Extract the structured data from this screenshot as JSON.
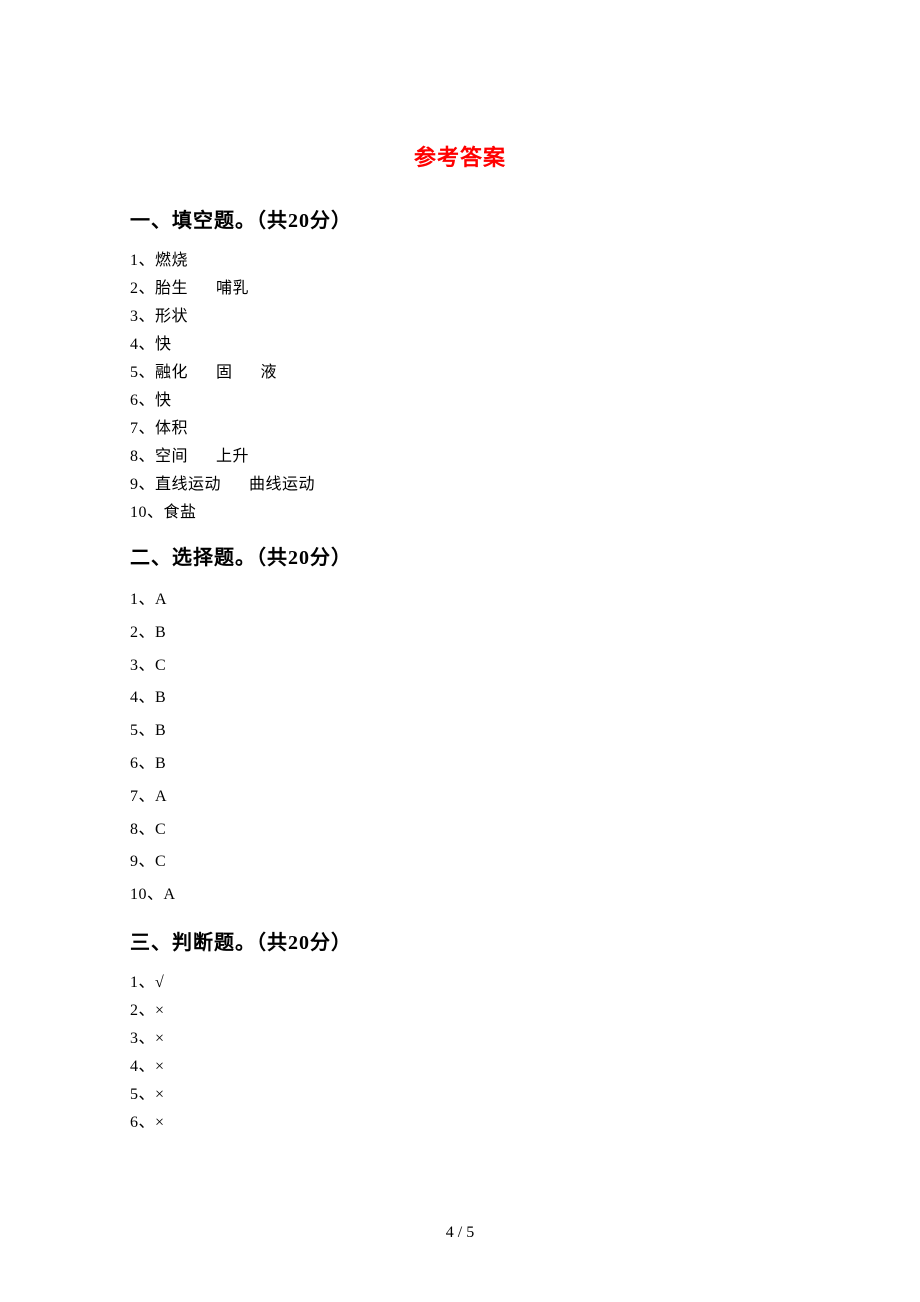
{
  "page_title": "参考答案",
  "colors": {
    "title_color": "#ff0000",
    "text_color": "#000000",
    "background_color": "#ffffff"
  },
  "typography": {
    "title_fontsize": 22,
    "heading_fontsize": 20,
    "body_fontsize": 16,
    "font_family": "SimSun"
  },
  "sections": {
    "fill": {
      "heading": "一、填空题。（共20分）",
      "items": [
        {
          "num": "1、",
          "values": [
            "燃烧"
          ]
        },
        {
          "num": "2、",
          "values": [
            "胎生",
            "哺乳"
          ]
        },
        {
          "num": "3、",
          "values": [
            "形状"
          ]
        },
        {
          "num": "4、",
          "values": [
            "快"
          ]
        },
        {
          "num": "5、",
          "values": [
            "融化",
            "固",
            "液"
          ]
        },
        {
          "num": "6、",
          "values": [
            "快"
          ]
        },
        {
          "num": "7、",
          "values": [
            "体积"
          ]
        },
        {
          "num": "8、",
          "values": [
            "空间",
            "上升"
          ]
        },
        {
          "num": "9、",
          "values": [
            "直线运动",
            "曲线运动"
          ]
        },
        {
          "num": "10、",
          "values": [
            "食盐"
          ]
        }
      ]
    },
    "choice": {
      "heading": "二、选择题。（共20分）",
      "items": [
        {
          "num": "1、",
          "value": "A"
        },
        {
          "num": "2、",
          "value": "B"
        },
        {
          "num": "3、",
          "value": "C"
        },
        {
          "num": "4、",
          "value": "B"
        },
        {
          "num": "5、",
          "value": "B"
        },
        {
          "num": "6、",
          "value": "B"
        },
        {
          "num": "7、",
          "value": "A"
        },
        {
          "num": "8、",
          "value": "C"
        },
        {
          "num": "9、",
          "value": "C"
        },
        {
          "num": "10、",
          "value": "A"
        }
      ]
    },
    "judge": {
      "heading": "三、判断题。（共20分）",
      "items": [
        {
          "num": "1、",
          "value": "√"
        },
        {
          "num": "2、",
          "value": "×"
        },
        {
          "num": "3、",
          "value": "×"
        },
        {
          "num": "4、",
          "value": "×"
        },
        {
          "num": "5、",
          "value": "×"
        },
        {
          "num": "6、",
          "value": "×"
        }
      ]
    }
  },
  "footer": "4 / 5"
}
